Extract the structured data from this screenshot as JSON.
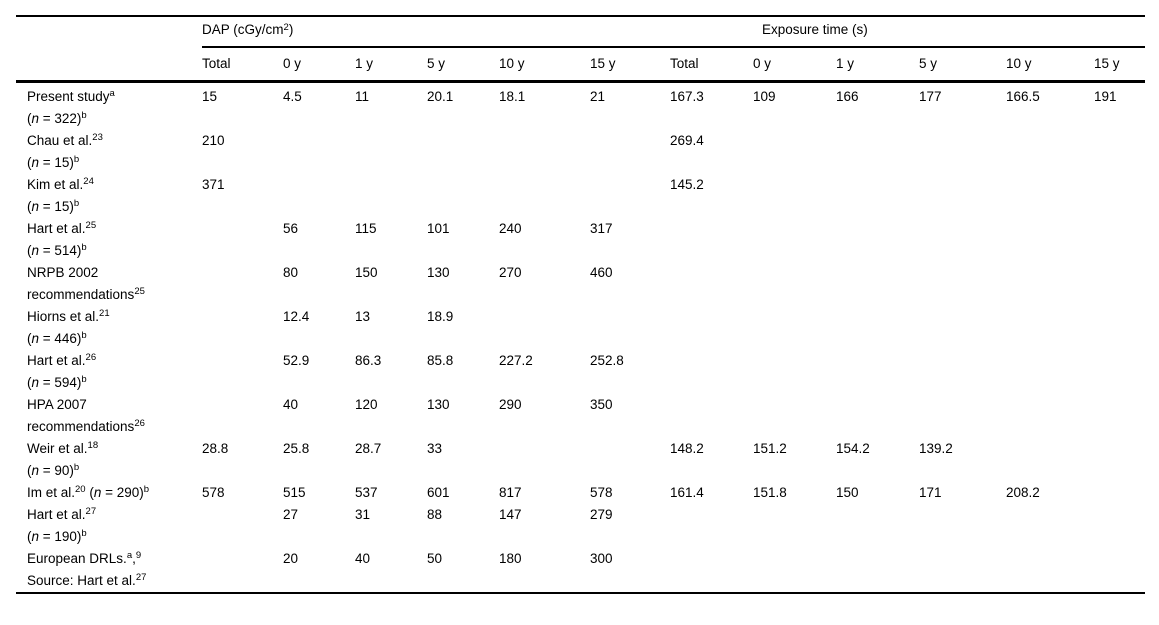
{
  "page": {
    "background_color": "#ffffff",
    "text_color": "#000000",
    "rule_color": "#000000"
  },
  "table": {
    "groups": [
      {
        "label": "DAP (cGy/cm^{2})"
      },
      {
        "label": "Exposure time (s)"
      }
    ],
    "column_headers": [
      "Total",
      "0 y",
      "1 y",
      "5 y",
      "10 y",
      "15 y",
      "Total",
      "0 y",
      "1 y",
      "5 y",
      "10 y",
      "15 y"
    ],
    "rows": [
      {
        "label_lines": [
          "Present study^{a}",
          "(*{n} = 322)^{b}"
        ],
        "dap": [
          "15",
          "4.5",
          "11",
          "20.1",
          "18.1",
          "21"
        ],
        "exposure": [
          "167.3",
          "109",
          "166",
          "177",
          "166.5",
          "191"
        ]
      },
      {
        "label_lines": [
          "Chau et al.^{23}",
          "(*{n} = 15)^{b}"
        ],
        "dap": [
          "210",
          "",
          "",
          "",
          "",
          ""
        ],
        "exposure": [
          "269.4",
          "",
          "",
          "",
          "",
          ""
        ]
      },
      {
        "label_lines": [
          "Kim et al.^{24}",
          "(*{n} = 15)^{b}"
        ],
        "dap": [
          "371",
          "",
          "",
          "",
          "",
          ""
        ],
        "exposure": [
          "145.2",
          "",
          "",
          "",
          "",
          ""
        ]
      },
      {
        "label_lines": [
          "Hart et al.^{25}",
          "(*{n} = 514)^{b}"
        ],
        "dap": [
          "",
          "56",
          "115",
          "101",
          "240",
          "317"
        ],
        "exposure": [
          "",
          "",
          "",
          "",
          "",
          ""
        ]
      },
      {
        "label_lines": [
          "NRPB 2002",
          "recommendations^{25}"
        ],
        "dap": [
          "",
          "80",
          "150",
          "130",
          "270",
          "460"
        ],
        "exposure": [
          "",
          "",
          "",
          "",
          "",
          ""
        ]
      },
      {
        "label_lines": [
          "Hiorns et al.^{21}",
          "(*{n} = 446)^{b}"
        ],
        "dap": [
          "",
          "12.4",
          "13",
          "18.9",
          "",
          ""
        ],
        "exposure": [
          "",
          "",
          "",
          "",
          "",
          ""
        ]
      },
      {
        "label_lines": [
          "Hart et al.^{26}",
          "(*{n} = 594)^{b}"
        ],
        "dap": [
          "",
          "52.9",
          "86.3",
          "85.8",
          "227.2",
          "252.8"
        ],
        "exposure": [
          "",
          "",
          "",
          "",
          "",
          ""
        ]
      },
      {
        "label_lines": [
          "HPA 2007",
          "recommendations^{26}"
        ],
        "dap": [
          "",
          "40",
          "120",
          "130",
          "290",
          "350"
        ],
        "exposure": [
          "",
          "",
          "",
          "",
          "",
          ""
        ]
      },
      {
        "label_lines": [
          "Weir et al.^{18}",
          "(*{n} = 90)^{b}"
        ],
        "dap": [
          "28.8",
          "25.8",
          "28.7",
          "33",
          "",
          ""
        ],
        "exposure": [
          "148.2",
          "151.2",
          "154.2",
          "139.2",
          "",
          ""
        ]
      },
      {
        "label_lines": [
          "Im et al.^{20} (*{n} = 290)^{b}"
        ],
        "dap": [
          "578",
          "515",
          "537",
          "601",
          "817",
          "578"
        ],
        "exposure": [
          "161.4",
          "151.8",
          "150",
          "171",
          "208.2",
          ""
        ]
      },
      {
        "label_lines": [
          "Hart et al.^{27}",
          "(*{n} = 190)^{b}"
        ],
        "dap": [
          "",
          "27",
          "31",
          "88",
          "147",
          "279"
        ],
        "exposure": [
          "",
          "",
          "",
          "",
          "",
          ""
        ]
      },
      {
        "label_lines": [
          "European DRLs.^{a},^{9}",
          "Source: Hart et al.^{27}"
        ],
        "dap": [
          "",
          "20",
          "40",
          "50",
          "180",
          "300"
        ],
        "exposure": [
          "",
          "",
          "",
          "",
          "",
          ""
        ]
      }
    ]
  }
}
